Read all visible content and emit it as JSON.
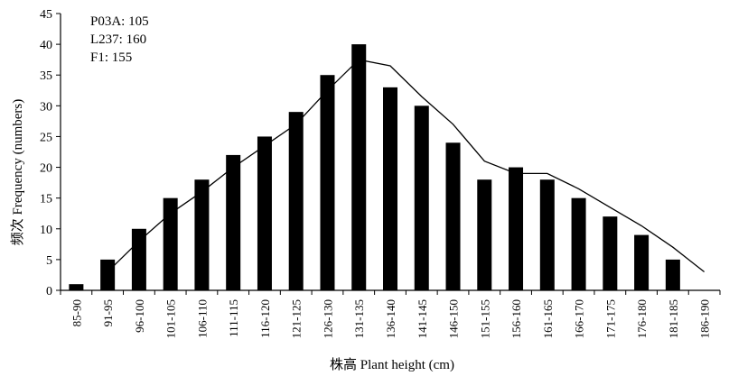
{
  "chart_data": {
    "type": "bar",
    "title": "",
    "xlabel": "株高 Plant height (cm)",
    "ylabel": "频次 Frequency (numbers)",
    "ylim": [
      0,
      45
    ],
    "yticks": [
      0,
      5,
      10,
      15,
      20,
      25,
      30,
      35,
      40,
      45
    ],
    "grid": false,
    "categories": [
      "85-90",
      "91-95",
      "96-100",
      "101-105",
      "106-110",
      "111-115",
      "116-120",
      "121-125",
      "126-130",
      "131-135",
      "136-140",
      "141-145",
      "146-150",
      "151-155",
      "156-160",
      "161-165",
      "166-170",
      "171-175",
      "176-180",
      "181-185",
      "186-190"
    ],
    "series": [
      {
        "type": "bar",
        "values": [
          1,
          5,
          10,
          15,
          18,
          22,
          25,
          29,
          35,
          40,
          33,
          30,
          24,
          18,
          20,
          18,
          15,
          12,
          9,
          5,
          0
        ]
      },
      {
        "type": "line",
        "values": [
          null,
          3,
          8,
          12.5,
          16,
          20,
          23.5,
          27,
          32.5,
          37.5,
          36.5,
          31.5,
          27,
          21,
          19,
          19,
          16.5,
          13.5,
          10.5,
          7,
          3
        ]
      }
    ],
    "annotations": [
      "P03A: 105",
      "L237: 160",
      "F1: 155"
    ],
    "legend": "top-left"
  }
}
